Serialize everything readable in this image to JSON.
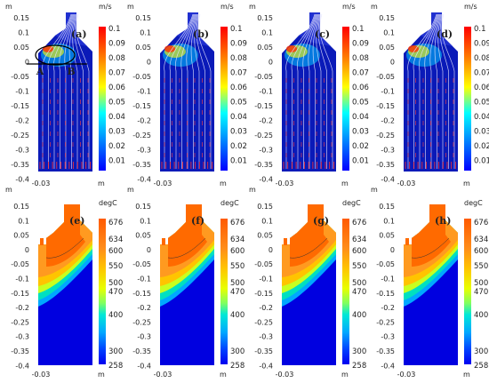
{
  "axes": {
    "y_unit": "m",
    "x_unit": "m",
    "x_tick": "-0.03",
    "y_ticks": [
      "0.15",
      "0.1",
      "0.05",
      "0",
      "-0.05",
      "-0.1",
      "-0.15",
      "-0.2",
      "-0.25",
      "-0.3",
      "-0.35",
      "-0.4"
    ]
  },
  "velocity_colorbar": {
    "unit": "m/s",
    "ticks": [
      "0.1",
      "0.09",
      "0.08",
      "0.07",
      "0.06",
      "0.05",
      "0.04",
      "0.03",
      "0.02",
      "0.01"
    ],
    "colors": [
      "#ff0000",
      "#ff8000",
      "#ffff00",
      "#00ffff",
      "#0080ff",
      "#0000ff"
    ]
  },
  "temperature_colorbar": {
    "unit": "degC",
    "ticks": [
      "676",
      "634",
      "600",
      "550",
      "500",
      "470",
      "400",
      "300",
      "258"
    ],
    "colors": [
      "#ff6a00",
      "#ff8c1a",
      "#ffc400",
      "#e8ff00",
      "#a0ff40",
      "#00e0c0",
      "#00b8ff",
      "#0060ff",
      "#0000ff"
    ]
  },
  "panels_top": [
    {
      "label": "(a)",
      "annotations": [
        "A",
        "B"
      ]
    },
    {
      "label": "(b)",
      "annotations": []
    },
    {
      "label": "(c)",
      "annotations": []
    },
    {
      "label": "(d)",
      "annotations": []
    }
  ],
  "panels_bottom": [
    {
      "label": "(e)"
    },
    {
      "label": "(f)"
    },
    {
      "label": "(g)"
    },
    {
      "label": "(h)"
    }
  ]
}
